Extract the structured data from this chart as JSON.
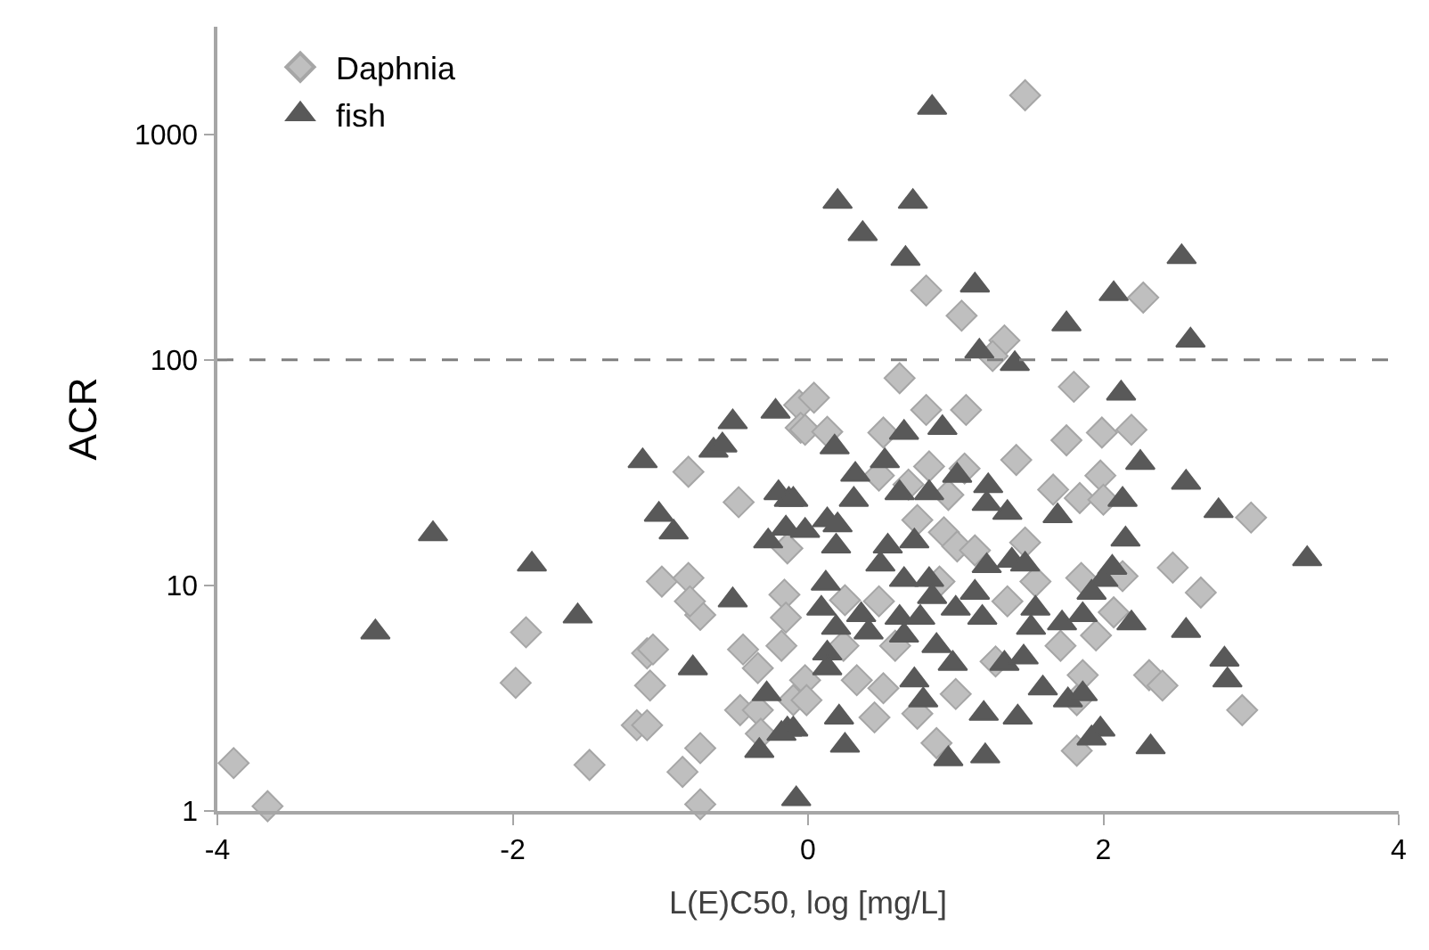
{
  "chart_data": {
    "type": "scatter",
    "xlabel": "L(E)C50, log [mg/L]",
    "ylabel": "ACR",
    "xlim": [
      -4,
      4
    ],
    "xticks": [
      -4,
      -2,
      0,
      2,
      4
    ],
    "ylim": [
      1,
      3000
    ],
    "yticks": [
      1,
      10,
      100,
      1000
    ],
    "log": "y",
    "legend": "top left",
    "ref_lines": [
      {
        "axis": "y",
        "value": 100,
        "color": "#808080",
        "line_style": "dashed"
      }
    ],
    "series": [
      {
        "name": "Daphnia",
        "color": "#bfbfbf",
        "marker": "diamond",
        "x": [
          -3.89,
          -3.66,
          -1.91,
          -1.98,
          -1.48,
          -0.81,
          -0.47,
          -0.99,
          -0.81,
          -0.73,
          -0.8,
          -1.09,
          -1.05,
          -1.07,
          -1.16,
          -1.09,
          -0.73,
          -0.85,
          -0.73,
          -0.16,
          -0.15,
          -0.18,
          -0.44,
          -0.34,
          -0.46,
          -0.34,
          -0.32,
          -0.06,
          -0.05,
          -0.14,
          -0.1,
          1.47,
          0.8,
          1.04,
          2.27,
          1.33,
          1.25,
          1.8,
          0.62,
          0.04,
          0.8,
          1.07,
          -0.02,
          0.13,
          0.51,
          1.75,
          1.99,
          2.19,
          1.41,
          0.82,
          1.06,
          1.98,
          1.66,
          1.84,
          2.0,
          0.95,
          0.68,
          0.48,
          0.74,
          0.92,
          3.0,
          2.47,
          2.66,
          1.47,
          1.01,
          1.13,
          1.85,
          2.13,
          1.54,
          0.89,
          0.25,
          0.48,
          1.35,
          2.07,
          0.24,
          0.59,
          1.27,
          1.95,
          1.71,
          2.31,
          2.4,
          -0.02,
          0.33,
          0.51,
          1.0,
          1.86,
          -0.01,
          0.45,
          0.74,
          1.82,
          2.94,
          0.87,
          1.82
        ],
        "values": [
          1.63,
          1.05,
          6.2,
          3.7,
          1.6,
          31.9,
          23.4,
          10.4,
          10.8,
          7.4,
          8.5,
          5.0,
          5.2,
          3.6,
          2.4,
          2.4,
          1.9,
          1.49,
          1.07,
          9.1,
          7.2,
          5.4,
          5.2,
          4.3,
          2.8,
          2.8,
          2.2,
          63,
          50,
          14.6,
          3.1,
          1490,
          203,
          157,
          189,
          122,
          104,
          76,
          83,
          68,
          60,
          60,
          49,
          48,
          47.6,
          44,
          47.6,
          49,
          36,
          33.7,
          33,
          30.7,
          26.6,
          24.4,
          24,
          25.2,
          28,
          30.7,
          19.5,
          17.2,
          20,
          12,
          9.3,
          15.5,
          14.9,
          14.3,
          10.8,
          11,
          10.4,
          10.4,
          8.6,
          8.5,
          8.5,
          7.6,
          5.4,
          5.4,
          4.6,
          6.0,
          5.4,
          4.0,
          3.6,
          3.8,
          3.8,
          3.5,
          3.3,
          4.0,
          3.1,
          2.6,
          2.7,
          3.1,
          2.8,
          2.0,
          1.85
        ]
      },
      {
        "name": "fish",
        "color": "#595959",
        "marker": "triangle",
        "x": [
          -2.54,
          -2.93,
          -1.87,
          -1.56,
          -1.12,
          -1.01,
          -0.91,
          -0.51,
          -0.64,
          -0.58,
          -0.22,
          -0.51,
          -0.78,
          -0.2,
          -0.13,
          -0.27,
          -0.15,
          -0.28,
          -0.14,
          -0.33,
          -0.08,
          0.84,
          0.2,
          0.71,
          0.37,
          0.66,
          1.13,
          2.07,
          2.53,
          1.75,
          2.59,
          1.16,
          1.4,
          2.12,
          0.65,
          0.91,
          0.18,
          0.52,
          0.32,
          1.01,
          1.22,
          2.25,
          2.56,
          2.78,
          3.38,
          0.62,
          0.82,
          0.31,
          -0.1,
          2.13,
          1.69,
          1.35,
          1.21,
          0.13,
          0.2,
          2.15,
          -0.02,
          0.19,
          0.54,
          0.72,
          0.49,
          1.21,
          1.38,
          1.47,
          2.06,
          2.0,
          0.65,
          0.82,
          0.12,
          1.92,
          1.13,
          0.84,
          1.0,
          0.09,
          1.54,
          1.72,
          1.86,
          2.19,
          2.56,
          0.36,
          0.62,
          0.76,
          1.18,
          0.19,
          0.41,
          0.65,
          1.51,
          0.87,
          0.13,
          1.33,
          1.46,
          0.98,
          0.13,
          2.82,
          2.84,
          0.72,
          1.59,
          1.76,
          1.86,
          0.78,
          0.21,
          1.19,
          1.42,
          -0.1,
          -0.18,
          1.98,
          1.92,
          0.25,
          0.95,
          1.2,
          2.32
        ],
        "values": [
          16.9,
          6.2,
          12.4,
          7.3,
          35.6,
          20.6,
          17.2,
          53,
          39.7,
          41.8,
          59,
          8.6,
          4.3,
          25.7,
          24,
          15.7,
          17.9,
          3.3,
          2.3,
          1.85,
          1.13,
          1313,
          503,
          503,
          362,
          281,
          214,
          196,
          286,
          144,
          122,
          109,
          96,
          71,
          47.6,
          50,
          41,
          35.6,
          31,
          30.7,
          27.6,
          35,
          28.6,
          21.4,
          13.1,
          25.7,
          25.7,
          24,
          24,
          24,
          20.3,
          21,
          23,
          19.5,
          18.5,
          16,
          17.5,
          14.9,
          14.9,
          15.7,
          12.4,
          12.2,
          12.9,
          12.4,
          12,
          10.6,
          10.6,
          10.6,
          10.2,
          9.3,
          9.3,
          8.9,
          7.9,
          7.9,
          7.9,
          6.8,
          7.4,
          6.8,
          6.3,
          7.4,
          7.2,
          7.2,
          7.2,
          6.5,
          6.2,
          6.0,
          6.5,
          5.4,
          5.0,
          4.5,
          4.8,
          4.5,
          4.3,
          4.7,
          3.8,
          3.8,
          3.5,
          3.1,
          3.3,
          3.1,
          2.6,
          2.7,
          2.6,
          2.3,
          2.2,
          2.3,
          2.1,
          1.95,
          1.7,
          1.75,
          1.92
        ]
      }
    ]
  }
}
